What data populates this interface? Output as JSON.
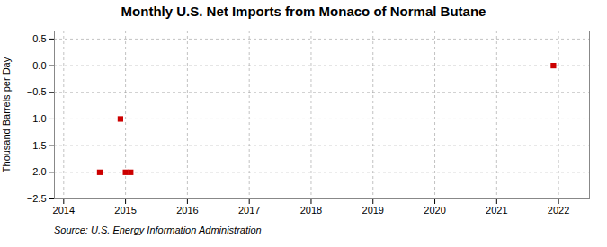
{
  "chart_data": {
    "type": "scatter",
    "title": "Monthly U.S. Net Imports from Monaco of Normal Butane",
    "ylabel": "Thousand Barrels per Day",
    "annotation": "Source: U.S. Energy Information Administration",
    "x": [
      2014.583,
      2014.917,
      2015.0,
      2015.083,
      2021.917
    ],
    "values": [
      -2.0,
      -1.0,
      -2.0,
      -2.0,
      0.0
    ],
    "color": "#cc0000",
    "marker": "square",
    "xlim": [
      2013.85,
      2022.5
    ],
    "ylim": [
      -2.5,
      0.65
    ],
    "xticks": [
      2014,
      2015,
      2016,
      2017,
      2018,
      2019,
      2020,
      2021,
      2022
    ],
    "yticks": [
      0.5,
      {
        "value": 0.0,
        "label": "0.0"
      },
      {
        "value": -0.5,
        "label": "−0.5"
      },
      {
        "value": -1.0,
        "label": "−1.0"
      },
      {
        "value": -1.5,
        "label": "−1.5"
      },
      {
        "value": -2.0,
        "label": "−2.0"
      },
      {
        "value": -2.5,
        "label": "−2.5"
      }
    ],
    "grid": true
  }
}
